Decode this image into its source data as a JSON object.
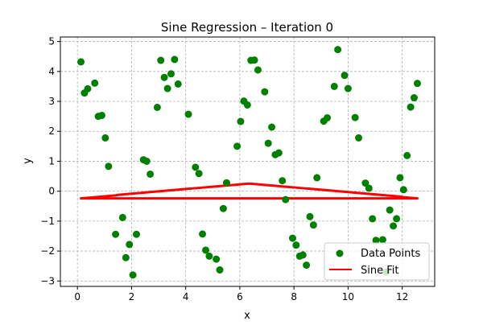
{
  "chart_data": {
    "type": "scatter",
    "title": "Sine Regression – Iteration 0",
    "xlabel": "x",
    "ylabel": "y",
    "xlim": [
      -0.63,
      13.2
    ],
    "ylim": [
      -3.18,
      5.15
    ],
    "xticks": [
      0,
      2,
      4,
      6,
      8,
      10,
      12
    ],
    "yticks": [
      -3,
      -2,
      -1,
      0,
      1,
      2,
      3,
      4,
      5
    ],
    "grid": true,
    "legend_position": "lower-right",
    "legend": [
      "Data Points",
      "Sine Fit"
    ],
    "colors": {
      "points": "#008000",
      "fit": "#ff0000"
    },
    "series": [
      {
        "name": "Data Points",
        "kind": "scatter",
        "x": [
          0.13,
          0.26,
          0.38,
          0.64,
          0.77,
          0.9,
          1.03,
          1.15,
          1.41,
          1.67,
          1.79,
          1.92,
          2.05,
          2.18,
          2.44,
          2.56,
          2.69,
          2.95,
          3.08,
          3.21,
          3.33,
          3.46,
          3.59,
          3.72,
          4.1,
          4.36,
          4.49,
          4.62,
          4.74,
          4.87,
          5.13,
          5.26,
          5.39,
          5.51,
          5.9,
          6.03,
          6.15,
          6.28,
          6.41,
          6.54,
          6.67,
          6.92,
          7.05,
          7.18,
          7.31,
          7.44,
          7.57,
          7.69,
          7.95,
          8.08,
          8.21,
          8.33,
          8.46,
          8.59,
          8.72,
          8.85,
          9.1,
          9.23,
          9.49,
          9.62,
          9.87,
          10.0,
          10.26,
          10.39,
          10.64,
          10.77,
          10.9,
          11.03,
          11.28,
          11.41,
          11.54,
          11.67,
          11.79,
          11.92,
          12.05,
          12.18,
          12.31,
          12.44,
          12.56
        ],
        "y": [
          4.32,
          3.28,
          3.42,
          3.61,
          2.5,
          2.53,
          1.78,
          0.83,
          -1.44,
          -0.88,
          -2.22,
          -1.78,
          -2.8,
          -1.44,
          1.05,
          1.0,
          0.57,
          2.8,
          4.37,
          3.8,
          3.43,
          3.92,
          4.4,
          3.58,
          2.57,
          0.8,
          0.59,
          -1.43,
          -1.97,
          -2.17,
          -2.27,
          -2.63,
          -0.58,
          0.28,
          1.5,
          2.33,
          3.01,
          2.88,
          4.37,
          4.38,
          4.05,
          3.32,
          1.6,
          2.14,
          1.22,
          1.28,
          0.35,
          -0.28,
          -1.57,
          -1.8,
          -2.17,
          -2.13,
          -2.47,
          -0.85,
          -1.13,
          0.45,
          2.34,
          2.45,
          3.5,
          4.73,
          3.87,
          3.43,
          2.46,
          1.78,
          0.27,
          0.1,
          -0.92,
          -1.64,
          -1.62,
          -2.7,
          -0.63,
          -1.16,
          -0.92,
          0.45,
          0.05,
          1.19,
          2.81,
          3.12,
          3.6
        ]
      },
      {
        "name": "Sine Fit",
        "kind": "line",
        "x": [
          0.13,
          0.26,
          0.38,
          0.51,
          0.64,
          0.77,
          0.9,
          1.03,
          1.15,
          1.28,
          1.41,
          1.54,
          1.67,
          1.79,
          1.92,
          2.05,
          2.18,
          2.31,
          2.44,
          2.56,
          2.69,
          2.82,
          2.95,
          3.08,
          3.21,
          3.33,
          3.46,
          3.59,
          3.72,
          3.85,
          3.97,
          4.1,
          4.23,
          4.36,
          4.49,
          4.62,
          4.74,
          4.87,
          5.0,
          5.13,
          5.26,
          5.39,
          5.51,
          5.64,
          5.77,
          5.9,
          6.03,
          6.15,
          6.28,
          6.41,
          6.54,
          6.67,
          6.8,
          6.92,
          7.05,
          7.18,
          7.31,
          7.44,
          7.57,
          7.69,
          7.82,
          7.95,
          8.08,
          8.21,
          8.33,
          8.46,
          8.59,
          8.72,
          8.85,
          8.97,
          9.1,
          9.23,
          9.36,
          9.49,
          9.62,
          9.74,
          9.87,
          10.0,
          10.13,
          10.26,
          10.39,
          10.51,
          10.64,
          10.77,
          10.9,
          11.03,
          11.15,
          11.28,
          11.41,
          11.54,
          11.67,
          11.79,
          11.92,
          12.05,
          12.18,
          12.31,
          12.44,
          12.56
        ],
        "y": [
          -0.24,
          -0.23,
          -0.22,
          -0.21,
          -0.2,
          -0.19,
          -0.18,
          -0.17,
          -0.16,
          -0.15,
          -0.14,
          -0.12,
          -0.11,
          -0.1,
          -0.09,
          -0.08,
          -0.07,
          -0.06,
          -0.05,
          -0.04,
          -0.03,
          -0.02,
          -0.01,
          0.0,
          0.01,
          0.02,
          0.03,
          0.04,
          0.05,
          0.06,
          0.07,
          0.08,
          0.09,
          0.1,
          0.11,
          0.12,
          0.13,
          0.14,
          0.15,
          0.16,
          0.17,
          0.18,
          0.19,
          0.2,
          0.21,
          0.22,
          0.23,
          0.24,
          0.25,
          0.25,
          0.24,
          0.23,
          0.22,
          0.21,
          0.2,
          0.19,
          0.18,
          0.17,
          0.16,
          0.15,
          0.14,
          0.13,
          0.12,
          0.11,
          0.1,
          0.09,
          0.08,
          0.07,
          0.06,
          0.05,
          0.04,
          0.03,
          0.02,
          0.01,
          0.0,
          -0.01,
          -0.02,
          -0.03,
          -0.04,
          -0.05,
          -0.06,
          -0.07,
          -0.08,
          -0.09,
          -0.1,
          -0.11,
          -0.12,
          -0.13,
          -0.14,
          -0.15,
          -0.16,
          -0.17,
          -0.18,
          -0.2,
          -0.21,
          -0.22,
          -0.23,
          -0.24
        ]
      }
    ]
  }
}
